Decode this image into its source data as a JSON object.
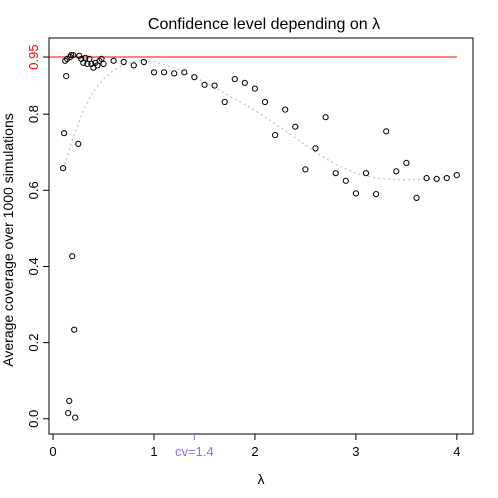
{
  "chart_data": {
    "type": "scatter",
    "title": "Confidence level depending on λ",
    "xlabel": "λ",
    "ylabel": "Average coverage over 1000 simulations",
    "xlim": [
      -0.04,
      4.16
    ],
    "ylim": [
      -0.04,
      1.0
    ],
    "x_ticks": [
      0,
      1,
      2,
      3,
      4
    ],
    "y_ticks": [
      0.0,
      0.2,
      0.4,
      0.6,
      0.8
    ],
    "reference_line": {
      "value": 0.95,
      "label": "0.95",
      "color": "#ff0000"
    },
    "cv_marker": {
      "x": 1.4,
      "label": "cv=1.4",
      "color": "#8870e8"
    },
    "trend_color": "#a9cfcf",
    "points": [
      [
        0.1,
        0.658
      ],
      [
        0.11,
        0.75
      ],
      [
        0.12,
        0.94
      ],
      [
        0.13,
        0.9
      ],
      [
        0.14,
        0.945
      ],
      [
        0.15,
        0.015
      ],
      [
        0.16,
        0.047
      ],
      [
        0.17,
        0.95
      ],
      [
        0.18,
        0.955
      ],
      [
        0.19,
        0.427
      ],
      [
        0.2,
        0.955
      ],
      [
        0.21,
        0.234
      ],
      [
        0.22,
        0.003
      ],
      [
        0.25,
        0.722
      ],
      [
        0.26,
        0.953
      ],
      [
        0.28,
        0.945
      ],
      [
        0.3,
        0.935
      ],
      [
        0.32,
        0.948
      ],
      [
        0.34,
        0.932
      ],
      [
        0.36,
        0.945
      ],
      [
        0.38,
        0.932
      ],
      [
        0.4,
        0.922
      ],
      [
        0.42,
        0.935
      ],
      [
        0.44,
        0.928
      ],
      [
        0.46,
        0.94
      ],
      [
        0.48,
        0.945
      ],
      [
        0.5,
        0.932
      ],
      [
        0.6,
        0.94
      ],
      [
        0.7,
        0.937
      ],
      [
        0.8,
        0.928
      ],
      [
        0.9,
        0.937
      ],
      [
        1.0,
        0.91
      ],
      [
        1.1,
        0.91
      ],
      [
        1.2,
        0.907
      ],
      [
        1.3,
        0.91
      ],
      [
        1.4,
        0.897
      ],
      [
        1.5,
        0.877
      ],
      [
        1.6,
        0.875
      ],
      [
        1.7,
        0.832
      ],
      [
        1.8,
        0.892
      ],
      [
        1.9,
        0.882
      ],
      [
        2.0,
        0.867
      ],
      [
        2.1,
        0.832
      ],
      [
        2.2,
        0.745
      ],
      [
        2.3,
        0.812
      ],
      [
        2.4,
        0.767
      ],
      [
        2.5,
        0.655
      ],
      [
        2.6,
        0.71
      ],
      [
        2.7,
        0.792
      ],
      [
        2.8,
        0.645
      ],
      [
        2.9,
        0.625
      ],
      [
        3.0,
        0.592
      ],
      [
        3.1,
        0.645
      ],
      [
        3.2,
        0.59
      ],
      [
        3.3,
        0.755
      ],
      [
        3.4,
        0.65
      ],
      [
        3.5,
        0.672
      ],
      [
        3.6,
        0.58
      ],
      [
        3.7,
        0.632
      ],
      [
        3.8,
        0.63
      ],
      [
        3.9,
        0.632
      ],
      [
        4.0,
        0.64
      ]
    ],
    "trend": [
      [
        0.1,
        0.655
      ],
      [
        0.2,
        0.74
      ],
      [
        0.3,
        0.81
      ],
      [
        0.4,
        0.86
      ],
      [
        0.5,
        0.892
      ],
      [
        0.6,
        0.915
      ],
      [
        0.7,
        0.93
      ],
      [
        0.8,
        0.938
      ],
      [
        0.9,
        0.94
      ],
      [
        1.0,
        0.937
      ],
      [
        1.2,
        0.922
      ],
      [
        1.4,
        0.898
      ],
      [
        1.6,
        0.87
      ],
      [
        1.8,
        0.84
      ],
      [
        2.0,
        0.81
      ],
      [
        2.2,
        0.775
      ],
      [
        2.4,
        0.738
      ],
      [
        2.6,
        0.7
      ],
      [
        2.8,
        0.668
      ],
      [
        3.0,
        0.645
      ],
      [
        3.2,
        0.632
      ],
      [
        3.4,
        0.628
      ],
      [
        3.6,
        0.628
      ],
      [
        3.8,
        0.632
      ],
      [
        4.0,
        0.64
      ]
    ]
  }
}
